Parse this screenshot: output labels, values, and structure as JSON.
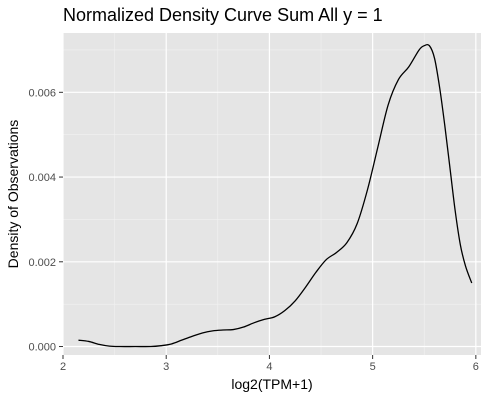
{
  "chart_data": {
    "type": "line",
    "title": "Normalized Density Curve Sum All y = 1",
    "xlabel": "log2(TPM+1)",
    "ylabel": "Density of Observations",
    "xlim": [
      2.0,
      6.05
    ],
    "ylim": [
      -0.0002,
      0.0074
    ],
    "x_ticks": [
      2,
      3,
      4,
      5,
      6
    ],
    "x_tick_labels": [
      "2",
      "3",
      "4",
      "5",
      "6"
    ],
    "y_ticks": [
      0.0,
      0.002,
      0.004,
      0.006
    ],
    "y_tick_labels": [
      "0.000",
      "0.002",
      "0.004",
      "0.006"
    ],
    "grid": true,
    "colors": {
      "panel": "#e5e5e5",
      "grid_major": "#ffffff",
      "line": "#000000"
    },
    "series": [
      {
        "x": [
          2.15,
          2.25,
          2.35,
          2.45,
          2.55,
          2.7,
          2.85,
          2.95,
          3.05,
          3.15,
          3.25,
          3.35,
          3.45,
          3.55,
          3.65,
          3.75,
          3.85,
          3.95,
          4.05,
          4.15,
          4.25,
          4.35,
          4.45,
          4.55,
          4.65,
          4.75,
          4.85,
          4.95,
          5.05,
          5.15,
          5.25,
          5.35,
          5.45,
          5.5,
          5.55,
          5.6,
          5.65,
          5.7,
          5.75,
          5.8,
          5.85,
          5.9,
          5.96
        ],
        "y": [
          0.00015,
          0.00012,
          5e-05,
          1e-05,
          0.0,
          0.0,
          0.0,
          2e-05,
          6e-05,
          0.00015,
          0.00024,
          0.00032,
          0.00037,
          0.00039,
          0.0004,
          0.00046,
          0.00056,
          0.00064,
          0.0007,
          0.00085,
          0.00108,
          0.0014,
          0.00175,
          0.00205,
          0.00222,
          0.00245,
          0.0029,
          0.0037,
          0.0047,
          0.0057,
          0.0063,
          0.0066,
          0.007,
          0.0071,
          0.0071,
          0.0068,
          0.0061,
          0.0052,
          0.0042,
          0.0032,
          0.0024,
          0.0019,
          0.0015
        ]
      }
    ]
  }
}
